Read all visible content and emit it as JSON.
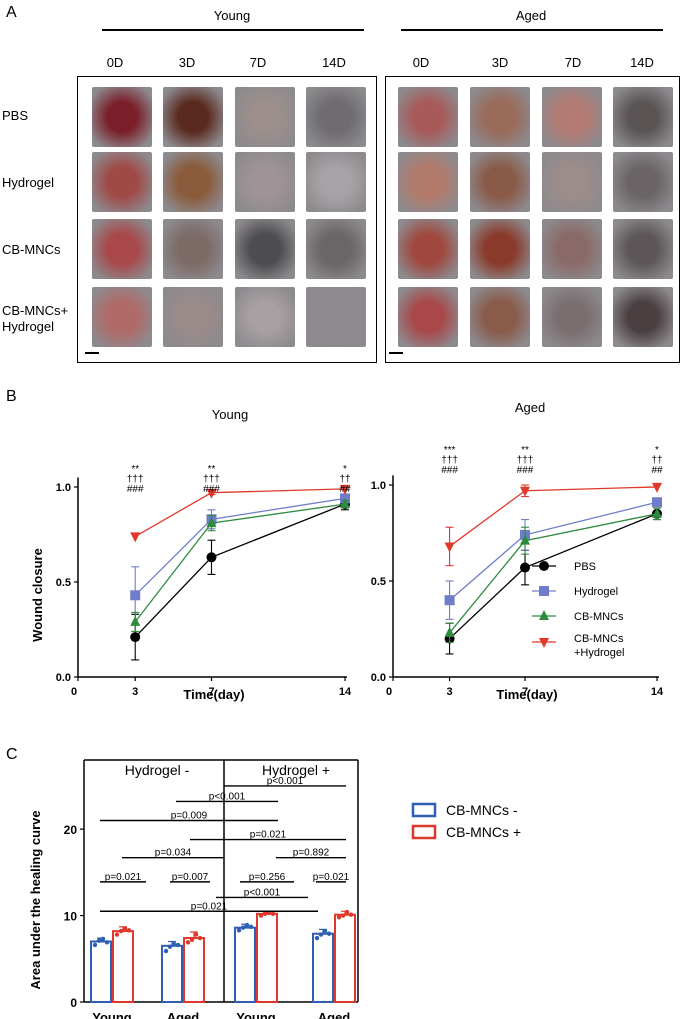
{
  "panel_a": {
    "letter": "A",
    "groups": [
      {
        "label": "Young",
        "days": [
          "0D",
          "3D",
          "7D",
          "14D"
        ]
      },
      {
        "label": "Aged",
        "days": [
          "0D",
          "3D",
          "7D",
          "14D"
        ]
      }
    ],
    "row_labels": [
      "PBS",
      "Hydrogel",
      "CB-MNCs",
      "CB-MNCs+\nHydrogel"
    ],
    "photo_colors": {
      "young": [
        [
          "#7a1f2a",
          "#5a2a20",
          "#9c8f8c",
          "#6e6c70"
        ],
        [
          "#a04a48",
          "#8a5a3a",
          "#9e9396",
          "#a7a2a6"
        ],
        [
          "#a8484a",
          "#7c6a66",
          "#4d4c4e",
          "#6a6566"
        ],
        [
          "#b06a68",
          "#9a8b8a",
          "#a8a0a3",
          "#8f8a90"
        ]
      ],
      "aged": [
        [
          "#a85a5a",
          "#9a6a5a",
          "#b27a72",
          "#5a5455"
        ],
        [
          "#b27a6a",
          "#8a5a48",
          "#9c8c8a",
          "#6a6466"
        ],
        [
          "#a0483f",
          "#8a3a2a",
          "#8a6a68",
          "#5c5658"
        ],
        [
          "#a8484a",
          "#8a5a4a",
          "#7a6f70",
          "#4a4042"
        ]
      ]
    }
  },
  "panel_b": {
    "letter": "B",
    "chart_data": [
      {
        "type": "line",
        "title": "Young",
        "xlabel": "Time(day)",
        "ylabel": "Wound closure",
        "x": [
          3,
          7,
          14
        ],
        "xticks": [
          0,
          3,
          7,
          14
        ],
        "yticks": [
          "0.0",
          "0.5",
          "1.0"
        ],
        "ylim": [
          0,
          1.05
        ],
        "series": [
          {
            "name": "PBS",
            "color": "#000000",
            "marker": "circle",
            "values": [
              0.21,
              0.63,
              0.91
            ],
            "errors": [
              0.12,
              0.09,
              0.03
            ]
          },
          {
            "name": "Hydrogel",
            "color": "#6f7cc9",
            "marker": "square",
            "values": [
              0.43,
              0.83,
              0.94
            ],
            "errors": [
              0.15,
              0.05,
              0.02
            ]
          },
          {
            "name": "CB-MNCs",
            "color": "#2e8b3e",
            "marker": "triangle",
            "values": [
              0.29,
              0.81,
              0.91
            ],
            "errors": [
              0.05,
              0.04,
              0.02
            ]
          },
          {
            "name": "CB-MNCs\n+Hydrogel",
            "color": "#e0392b",
            "marker": "triangle-down",
            "values": [
              0.74,
              0.97,
              0.99
            ],
            "errors": [
              0.0,
              0.01,
              0.0
            ]
          }
        ],
        "annotations": [
          {
            "x": 3,
            "lines": [
              "**",
              "†††",
              "###"
            ]
          },
          {
            "x": 7,
            "lines": [
              "**",
              "†††",
              "###"
            ]
          },
          {
            "x": 14,
            "lines": [
              "*",
              "††",
              "##"
            ]
          }
        ]
      },
      {
        "type": "line",
        "title": "Aged",
        "xlabel": "Time(day)",
        "ylabel": "",
        "x": [
          3,
          7,
          14
        ],
        "xticks": [
          0,
          3,
          7,
          14
        ],
        "yticks": [
          "0.0",
          "0.5",
          "1.0"
        ],
        "ylim": [
          0,
          1.05
        ],
        "series": [
          {
            "name": "PBS",
            "color": "#000000",
            "marker": "circle",
            "values": [
              0.2,
              0.57,
              0.85
            ],
            "errors": [
              0.08,
              0.09,
              0.03
            ]
          },
          {
            "name": "Hydrogel",
            "color": "#6f7cc9",
            "marker": "square",
            "values": [
              0.4,
              0.74,
              0.91
            ],
            "errors": [
              0.1,
              0.08,
              0.02
            ]
          },
          {
            "name": "CB-MNCs",
            "color": "#2e8b3e",
            "marker": "triangle",
            "values": [
              0.23,
              0.71,
              0.85
            ],
            "errors": [
              0.05,
              0.07,
              0.03
            ]
          },
          {
            "name": "CB-MNCs\n+Hydrogel",
            "color": "#e0392b",
            "marker": "triangle-down",
            "values": [
              0.68,
              0.97,
              0.99
            ],
            "errors": [
              0.1,
              0.03,
              0.0
            ]
          }
        ],
        "annotations": [
          {
            "x": 3,
            "lines": [
              "***",
              "†††",
              "###"
            ]
          },
          {
            "x": 7,
            "lines": [
              "**",
              "†††",
              "###"
            ]
          },
          {
            "x": 14,
            "lines": [
              "*",
              "††",
              "##"
            ]
          }
        ]
      }
    ]
  },
  "panel_c": {
    "letter": "C",
    "chart_data": {
      "type": "bar",
      "ylabel": "Area under the healing curve",
      "yticks": [
        0,
        10,
        20
      ],
      "ylim": [
        0,
        28
      ],
      "group_titles": [
        "Hydrogel -",
        "Hydrogel +"
      ],
      "categories": [
        "Young",
        "Aged",
        "Young",
        "Aged"
      ],
      "series": [
        {
          "name": "CB-MNCs -",
          "color": "#2f5fb3",
          "values": [
            7.0,
            6.5,
            8.6,
            7.9
          ],
          "errors": [
            0.4,
            0.5,
            0.4,
            0.5
          ]
        },
        {
          "name": "CB-MNCs +",
          "color": "#e0392b",
          "values": [
            8.2,
            7.4,
            10.2,
            10.1
          ],
          "errors": [
            0.5,
            0.7,
            0.2,
            0.4
          ]
        }
      ],
      "points": [
        [
          [
            6.6,
            7.1,
            7.3,
            6.9
          ],
          [
            7.8,
            8.2,
            8.5,
            8.3
          ]
        ],
        [
          [
            5.9,
            6.4,
            6.7,
            6.6
          ],
          [
            6.9,
            7.2,
            7.8,
            7.4
          ]
        ],
        [
          [
            8.3,
            8.6,
            8.9,
            8.7
          ],
          [
            10.0,
            10.2,
            10.3,
            10.2
          ]
        ],
        [
          [
            7.4,
            7.8,
            8.2,
            7.9
          ],
          [
            9.8,
            10.0,
            10.4,
            10.1
          ]
        ]
      ],
      "comparisons": [
        {
          "text": "p<0.001",
          "y": 25.0
        },
        {
          "text": "p<0.001",
          "y": 23.2
        },
        {
          "text": "p=0.009",
          "y": 21.0
        },
        {
          "text": "p=0.021",
          "y": 18.8
        },
        {
          "text": "p=0.034",
          "y": 16.7
        },
        {
          "text": "p=0.892",
          "y": 16.7
        },
        {
          "text": "p=0.021",
          "y": 13.9
        },
        {
          "text": "p=0.007",
          "y": 13.9
        },
        {
          "text": "p=0.256",
          "y": 13.9
        },
        {
          "text": "p=0.021",
          "y": 13.9
        },
        {
          "text": "p<0.001",
          "y": 12.1
        },
        {
          "text": "p=0.021",
          "y": 10.5
        }
      ]
    }
  }
}
